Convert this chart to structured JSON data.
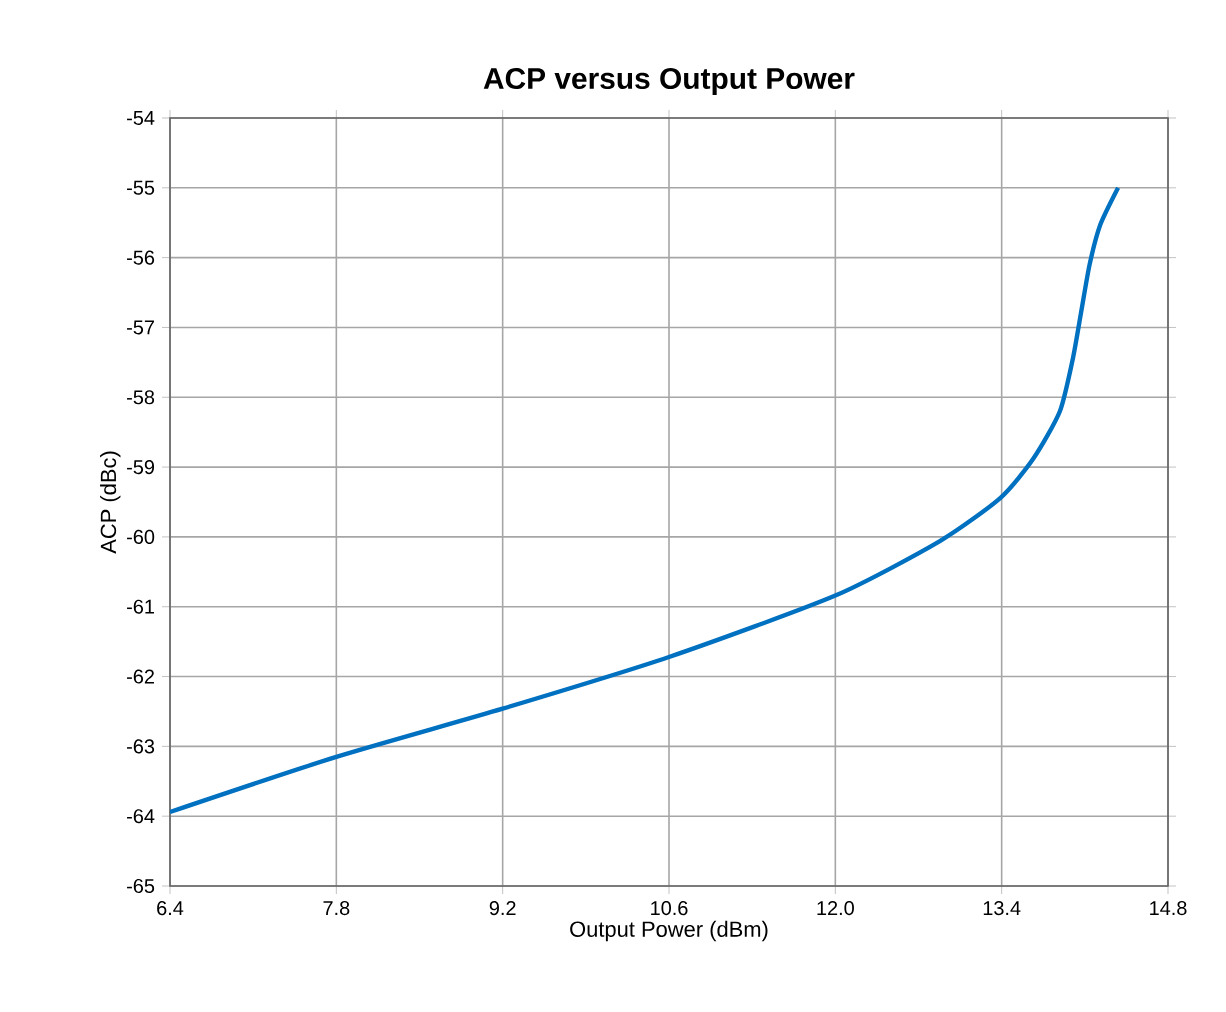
{
  "chart_data": {
    "type": "line",
    "title": "ACP versus Output Power",
    "xlabel": "Output Power (dBm)",
    "ylabel": "ACP (dBc)",
    "xlim": [
      6.4,
      14.8
    ],
    "xticks": [
      6.4,
      7.8,
      9.2,
      10.6,
      {
        "value": 12.0,
        "label": "12.0"
      },
      13.4,
      14.8
    ],
    "ylim": [
      -65,
      -54
    ],
    "yticks": [
      -65,
      -64,
      -63,
      -62,
      -61,
      -60,
      -59,
      -58,
      -57,
      -56,
      -55,
      -54
    ],
    "grid": true,
    "series": [
      {
        "color": "#0070c0",
        "x": [
          6.4,
          7.8,
          9.2,
          10.6,
          12.0,
          12.88,
          13.39,
          13.67,
          13.89,
          14.0,
          14.07,
          14.14,
          14.23,
          14.38
        ],
        "values": [
          -63.94,
          -63.15,
          -62.46,
          -61.72,
          -60.84,
          -60.06,
          -59.44,
          -58.87,
          -58.2,
          -57.44,
          -56.77,
          -56.1,
          -55.53,
          -55.0
        ]
      }
    ]
  }
}
